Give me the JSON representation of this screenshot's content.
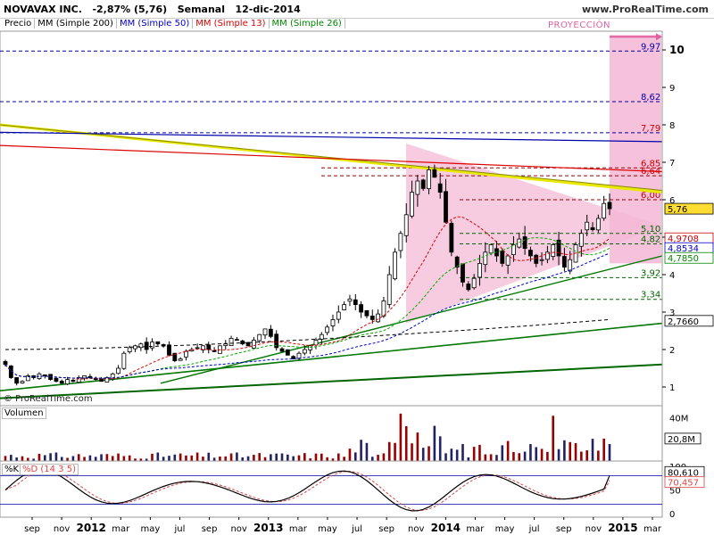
{
  "header": {
    "symbol": "NOVAVAX INC.",
    "change": "-2,87% (5,76)",
    "period": "Semanal",
    "date": "12-dic-2014",
    "site": "www.ProRealTime.com"
  },
  "legend": {
    "price": "Precio",
    "ma200": "MM (Simple 200)",
    "ma50": "MM (Simple 50)",
    "ma13": "MM (Simple 13)",
    "ma26": "MM (Simple 26)"
  },
  "copyright": "© ProRealTime.com",
  "projection_label": "PROYECCIÓN",
  "volume_label": "Volumen",
  "stoch_labels": {
    "k": "%K",
    "d": "%D (14 3 5)"
  },
  "colors": {
    "ma200": "#000000",
    "ma50": "#0000cc",
    "ma13": "#dd0000",
    "ma26": "#00aa00",
    "bull": "#ffffff",
    "bear": "#000000",
    "projection": "#f4b6d4",
    "trend_yellow": "#e8e800",
    "support_green": "#007700"
  },
  "chart_data": {
    "type": "candlestick",
    "title": "NOVAVAX INC.",
    "price_axis": {
      "min": 0.5,
      "max": 10.5,
      "ticks": [
        1,
        2,
        3,
        4,
        5,
        6,
        7,
        8,
        9,
        10
      ]
    },
    "x_ticks": [
      "sep",
      "nov",
      "2012",
      "mar",
      "may",
      "jul",
      "sep",
      "nov",
      "2013",
      "mar",
      "may",
      "jul",
      "sep",
      "nov",
      "2014",
      "mar",
      "may",
      "jul",
      "sep",
      "nov",
      "2015",
      "mar"
    ],
    "current_price": 5.76,
    "price_path": [
      1.6,
      1.25,
      1.1,
      1.15,
      1.3,
      1.25,
      1.35,
      1.3,
      1.2,
      1.15,
      1.1,
      1.2,
      1.15,
      1.25,
      1.3,
      1.25,
      1.2,
      1.15,
      1.25,
      1.35,
      1.5,
      1.9,
      2.05,
      2.1,
      2.15,
      2.0,
      2.2,
      2.15,
      2.1,
      1.85,
      1.7,
      1.75,
      1.95,
      2.0,
      2.05,
      2.1,
      2.0,
      1.95,
      2.1,
      2.15,
      2.3,
      2.25,
      2.15,
      2.1,
      2.25,
      2.4,
      2.55,
      2.35,
      2.05,
      1.95,
      1.85,
      1.75,
      1.9,
      2.0,
      2.1,
      2.25,
      2.4,
      2.6,
      2.8,
      3.0,
      3.2,
      3.35,
      3.2,
      3.0,
      2.9,
      2.8,
      2.95,
      3.3,
      4.0,
      4.6,
      5.1,
      5.6,
      6.2,
      6.5,
      6.3,
      6.8,
      6.6,
      6.2,
      5.4,
      4.6,
      4.2,
      3.8,
      3.6,
      3.9,
      4.3,
      4.6,
      4.8,
      4.5,
      4.3,
      4.5,
      4.8,
      4.95,
      4.7,
      4.5,
      4.3,
      4.4,
      4.6,
      4.8,
      4.5,
      4.2,
      4.4,
      4.8,
      5.1,
      5.4,
      5.2,
      5.5,
      5.9,
      5.76
    ],
    "ma200": {
      "start": 2.0,
      "end": 2.8
    },
    "levels": [
      {
        "label": "9,97",
        "value": 9.97
      },
      {
        "label": "8,62",
        "value": 8.62
      },
      {
        "label": "7,79",
        "value": 7.79
      },
      {
        "label": "6,85",
        "value": 6.85
      },
      {
        "label": "6,64",
        "value": 6.64
      },
      {
        "label": "6,00",
        "value": 6.0
      },
      {
        "label": "5,10",
        "value": 5.1
      },
      {
        "label": "4,82",
        "value": 4.82
      },
      {
        "label": "3,92",
        "value": 3.92
      },
      {
        "label": "3,34",
        "value": 3.34
      }
    ],
    "axis_badges": [
      {
        "label": "5,76",
        "value": 5.76,
        "style": "yellow"
      },
      {
        "label": "4,9708",
        "value": 4.9708,
        "style": "red"
      },
      {
        "label": "4,8534",
        "value": 4.8534,
        "style": "blue"
      },
      {
        "label": "4,7850",
        "value": 4.785,
        "style": "green"
      },
      {
        "label": "2,7660",
        "value": 2.766,
        "style": "black"
      }
    ],
    "volume": {
      "ticks": [
        "40M"
      ],
      "current_label": "20,8M"
    },
    "stochastic": {
      "ticks": [
        "100",
        "50",
        "0"
      ],
      "k_label": "80,610",
      "d_label": "70,457"
    }
  }
}
